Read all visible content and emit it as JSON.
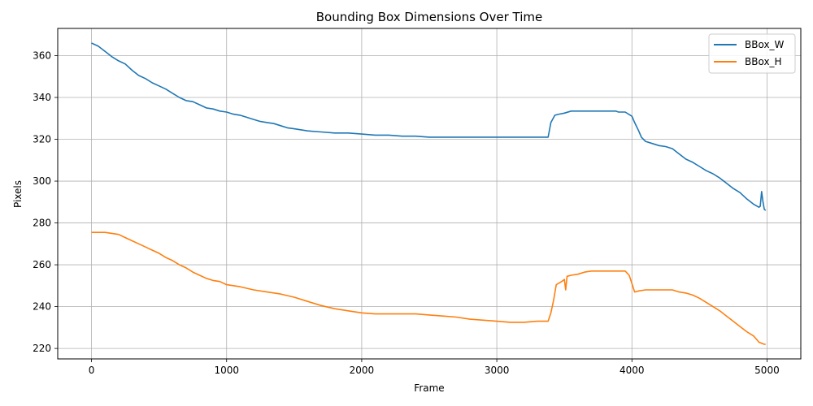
{
  "chart_data": {
    "type": "line",
    "title": "Bounding Box Dimensions Over Time",
    "xlabel": "Frame",
    "ylabel": "Pixels",
    "xlim": [
      -250,
      5250
    ],
    "ylim": [
      215,
      373
    ],
    "xticks": [
      0,
      1000,
      2000,
      3000,
      4000,
      5000
    ],
    "yticks": [
      220,
      240,
      260,
      280,
      300,
      320,
      340,
      360
    ],
    "grid": true,
    "legend_position": "top-right",
    "series": [
      {
        "name": "BBox_W",
        "color": "#1f77b4",
        "x": [
          0,
          50,
          100,
          150,
          200,
          250,
          300,
          350,
          400,
          450,
          500,
          550,
          600,
          650,
          700,
          750,
          800,
          850,
          900,
          950,
          1000,
          1050,
          1100,
          1150,
          1200,
          1250,
          1300,
          1350,
          1400,
          1450,
          1500,
          1600,
          1700,
          1800,
          1900,
          2000,
          2100,
          2200,
          2300,
          2400,
          2500,
          2600,
          2700,
          2800,
          2900,
          3000,
          3100,
          3200,
          3300,
          3380,
          3400,
          3430,
          3460,
          3500,
          3550,
          3600,
          3700,
          3800,
          3880,
          3900,
          3950,
          4000,
          4020,
          4050,
          4070,
          4100,
          4150,
          4200,
          4250,
          4300,
          4350,
          4400,
          4450,
          4500,
          4550,
          4600,
          4650,
          4700,
          4750,
          4800,
          4850,
          4900,
          4940,
          4950,
          4960,
          4970,
          4980,
          4990
        ],
        "values": [
          366,
          364.5,
          362,
          359.5,
          357.5,
          356,
          353,
          350.5,
          349,
          347,
          345.5,
          344,
          342,
          340,
          338.5,
          338,
          336.5,
          335,
          334.5,
          333.5,
          333,
          332,
          331.5,
          330.5,
          329.5,
          328.5,
          328,
          327.5,
          326.5,
          325.5,
          325,
          324,
          323.5,
          323,
          323,
          322.5,
          322,
          322,
          321.5,
          321.5,
          321,
          321,
          321,
          321,
          321,
          321,
          321,
          321,
          321,
          321,
          328,
          331.5,
          332,
          332.5,
          333.5,
          333.5,
          333.5,
          333.5,
          333.5,
          333,
          333,
          331,
          328,
          324,
          321,
          319,
          318,
          317,
          316.5,
          315.5,
          313,
          310.5,
          309,
          307,
          305,
          303.5,
          301.5,
          299,
          296.5,
          294.5,
          291.5,
          289,
          287.5,
          288,
          295,
          290,
          286.5,
          286
        ]
      },
      {
        "name": "BBox_H",
        "color": "#ff7f0e",
        "x": [
          0,
          50,
          100,
          150,
          200,
          250,
          300,
          350,
          400,
          450,
          500,
          550,
          600,
          650,
          700,
          750,
          800,
          850,
          900,
          950,
          1000,
          1100,
          1200,
          1300,
          1400,
          1500,
          1600,
          1700,
          1800,
          1900,
          2000,
          2100,
          2200,
          2300,
          2400,
          2500,
          2600,
          2700,
          2800,
          2900,
          3000,
          3100,
          3200,
          3300,
          3380,
          3400,
          3420,
          3440,
          3480,
          3500,
          3510,
          3520,
          3550,
          3600,
          3650,
          3700,
          3800,
          3900,
          3950,
          3980,
          4000,
          4020,
          4050,
          4100,
          4200,
          4300,
          4350,
          4400,
          4450,
          4500,
          4550,
          4600,
          4650,
          4700,
          4750,
          4800,
          4850,
          4900,
          4920,
          4940,
          4960,
          4980,
          4990
        ],
        "values": [
          275.5,
          275.5,
          275.5,
          275,
          274.5,
          273,
          271.5,
          270,
          268.5,
          267,
          265.5,
          263.5,
          262,
          260,
          258.5,
          256.5,
          255,
          253.5,
          252.5,
          252,
          250.5,
          249.5,
          248,
          247,
          246,
          244.5,
          242.5,
          240.5,
          239,
          238,
          237,
          236.5,
          236.5,
          236.5,
          236.5,
          236,
          235.5,
          235,
          234,
          233.5,
          233,
          232.5,
          232.5,
          233,
          233,
          237,
          243,
          250.5,
          252,
          253,
          248,
          254.5,
          255,
          255.5,
          256.5,
          257,
          257,
          257,
          257,
          255,
          251,
          247,
          247.5,
          248,
          248,
          248,
          247,
          246.5,
          245.5,
          244,
          242,
          240,
          238,
          235.5,
          233,
          230.5,
          228,
          226,
          224.5,
          223,
          222.5,
          222,
          222
        ]
      }
    ]
  }
}
